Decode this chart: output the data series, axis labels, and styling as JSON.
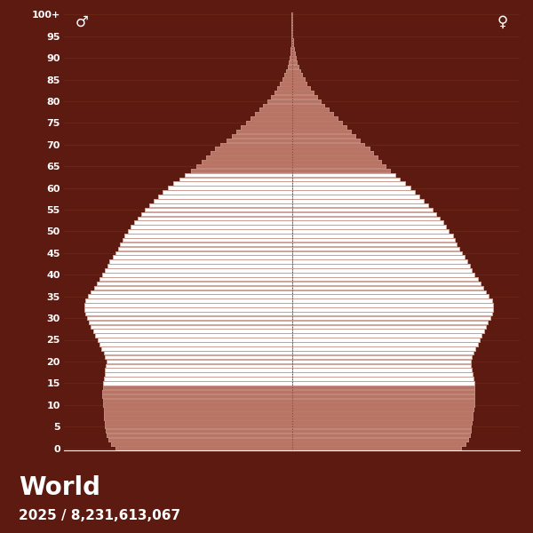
{
  "title": "World",
  "subtitle": "2025 / 8,231,613,067",
  "background_color": "#5c1a10",
  "bar_color": "#b87565",
  "bar_edge_color": "#c49080",
  "bar_fill_white": "#ffffff",
  "center_line_color": "#7a3a2a",
  "text_color": "#ffffff",
  "grid_color": "#6e2a1a",
  "bottom_bg_color": "#3d0e06",
  "male_symbol": "♂",
  "female_symbol": "♀",
  "ages": [
    0,
    1,
    2,
    3,
    4,
    5,
    6,
    7,
    8,
    9,
    10,
    11,
    12,
    13,
    14,
    15,
    16,
    17,
    18,
    19,
    20,
    21,
    22,
    23,
    24,
    25,
    26,
    27,
    28,
    29,
    30,
    31,
    32,
    33,
    34,
    35,
    36,
    37,
    38,
    39,
    40,
    41,
    42,
    43,
    44,
    45,
    46,
    47,
    48,
    49,
    50,
    51,
    52,
    53,
    54,
    55,
    56,
    57,
    58,
    59,
    60,
    61,
    62,
    63,
    64,
    65,
    66,
    67,
    68,
    69,
    70,
    71,
    72,
    73,
    74,
    75,
    76,
    77,
    78,
    79,
    80,
    81,
    82,
    83,
    84,
    85,
    86,
    87,
    88,
    89,
    90,
    91,
    92,
    93,
    94,
    95,
    96,
    97,
    98,
    99,
    100
  ],
  "male": [
    62.0,
    63.5,
    64.5,
    65.0,
    65.2,
    65.5,
    65.8,
    65.9,
    66.0,
    66.1,
    66.3,
    66.4,
    66.5,
    66.5,
    66.4,
    66.3,
    66.1,
    65.8,
    65.5,
    65.2,
    65.0,
    65.5,
    66.0,
    66.8,
    67.5,
    68.2,
    69.0,
    69.8,
    70.5,
    71.2,
    72.0,
    72.5,
    72.8,
    72.8,
    72.5,
    71.5,
    70.5,
    69.5,
    68.5,
    67.5,
    66.5,
    65.5,
    64.8,
    64.0,
    63.0,
    62.0,
    61.0,
    60.2,
    59.5,
    58.8,
    57.5,
    56.5,
    55.5,
    54.2,
    53.0,
    51.5,
    50.0,
    48.5,
    47.0,
    45.5,
    43.5,
    41.5,
    39.5,
    37.5,
    35.5,
    33.5,
    31.8,
    30.0,
    28.5,
    27.0,
    25.0,
    23.0,
    21.2,
    19.5,
    18.0,
    16.2,
    14.5,
    13.0,
    11.5,
    10.0,
    8.5,
    7.2,
    6.0,
    5.0,
    4.1,
    3.3,
    2.6,
    2.0,
    1.5,
    1.1,
    0.8,
    0.55,
    0.38,
    0.25,
    0.17,
    0.11,
    0.07,
    0.05,
    0.03,
    0.02,
    0.01
  ],
  "female": [
    59.5,
    61.0,
    62.0,
    62.5,
    62.8,
    63.0,
    63.3,
    63.5,
    63.6,
    63.8,
    64.0,
    64.1,
    64.2,
    64.2,
    64.1,
    64.0,
    63.8,
    63.5,
    63.2,
    63.0,
    62.8,
    63.3,
    63.8,
    64.5,
    65.2,
    65.9,
    66.7,
    67.5,
    68.2,
    68.9,
    69.7,
    70.2,
    70.5,
    70.5,
    70.2,
    69.2,
    68.2,
    67.2,
    66.2,
    65.2,
    64.2,
    63.2,
    62.5,
    61.7,
    60.7,
    59.7,
    58.7,
    57.9,
    57.2,
    56.5,
    55.2,
    54.2,
    53.2,
    52.0,
    50.8,
    49.3,
    47.8,
    46.3,
    44.8,
    43.3,
    41.5,
    39.7,
    38.0,
    36.3,
    34.5,
    33.0,
    31.5,
    30.0,
    28.5,
    27.2,
    25.5,
    23.8,
    22.2,
    20.7,
    19.2,
    17.5,
    16.0,
    14.5,
    13.0,
    11.5,
    10.0,
    8.8,
    7.5,
    6.3,
    5.3,
    4.4,
    3.6,
    2.9,
    2.2,
    1.7,
    1.3,
    0.98,
    0.72,
    0.52,
    0.37,
    0.26,
    0.18,
    0.12,
    0.08,
    0.05,
    0.03
  ],
  "xlim": 80,
  "ytick_step": 5
}
